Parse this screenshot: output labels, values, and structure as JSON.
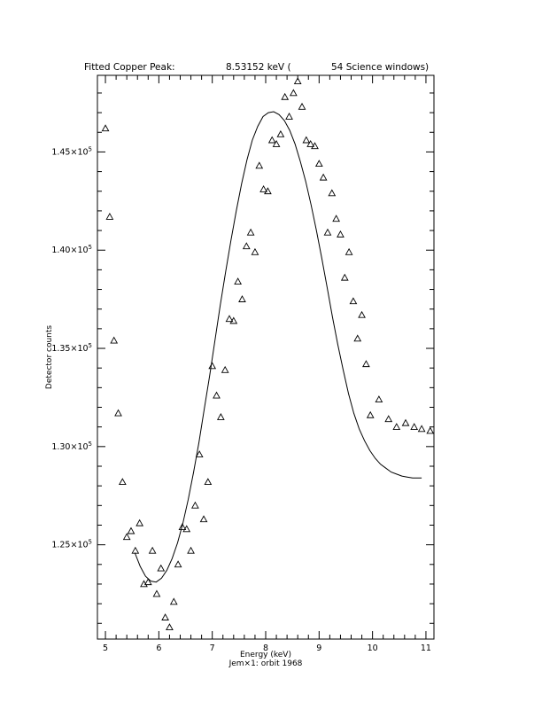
{
  "chart_data": {
    "type": "scatter",
    "title_left": "Fitted Copper Peak:",
    "title_value": "8.53152 keV (",
    "title_right": "54 Science windows)",
    "xlabel": "Energy (keV)",
    "ylabel": "Detector counts",
    "subtitle": "Jem×1: orbit 1968",
    "xlim": [
      4.85,
      11.15
    ],
    "ylim": [
      120200,
      148900
    ],
    "x_ticks": [
      5,
      6,
      7,
      8,
      9,
      10,
      11
    ],
    "y_ticks": [
      {
        "value": 125000,
        "mantissa": "1.25×10",
        "exp": "5"
      },
      {
        "value": 130000,
        "mantissa": "1.30×10",
        "exp": "5"
      },
      {
        "value": 135000,
        "mantissa": "1.35×10",
        "exp": "5"
      },
      {
        "value": 140000,
        "mantissa": "1.40×10",
        "exp": "5"
      },
      {
        "value": 145000,
        "mantissa": "1.45×10",
        "exp": "5"
      }
    ],
    "grid": false,
    "series": [
      {
        "style": "triangle-markers",
        "x": [
          5.0,
          5.08,
          5.16,
          5.24,
          5.32,
          5.4,
          5.48,
          5.56,
          5.64,
          5.72,
          5.8,
          5.88,
          5.96,
          6.04,
          6.12,
          6.2,
          6.28,
          6.36,
          6.44,
          6.52,
          6.6,
          6.68,
          6.76,
          6.84,
          6.92,
          7.0,
          7.08,
          7.16,
          7.24,
          7.32,
          7.4,
          7.48,
          7.56,
          7.64,
          7.72,
          7.8,
          7.88,
          7.96,
          8.04,
          8.12,
          8.2,
          8.28,
          8.36,
          8.44,
          8.52,
          8.6,
          8.68,
          8.76,
          8.84,
          8.92,
          9.0,
          9.08,
          9.16,
          9.24,
          9.32,
          9.4,
          9.48,
          9.56,
          9.64,
          9.72,
          9.8,
          9.88,
          9.96,
          10.12,
          10.3,
          10.45,
          10.62,
          10.78,
          10.92,
          11.08
        ],
        "y": [
          146200,
          141700,
          135400,
          131700,
          128200,
          125400,
          125700,
          124700,
          126100,
          123000,
          123100,
          124700,
          122500,
          123800,
          121300,
          120800,
          122100,
          124000,
          125900,
          125800,
          124700,
          127000,
          129600,
          126300,
          128200,
          134100,
          132600,
          131500,
          133900,
          136500,
          136400,
          138400,
          137500,
          140200,
          140900,
          139900,
          144300,
          143100,
          143000,
          145600,
          145400,
          145900,
          147800,
          146800,
          148000,
          148600,
          147300,
          145600,
          145400,
          145300,
          144400,
          143700,
          140900,
          142900,
          141600,
          140800,
          138600,
          139900,
          137400,
          135500,
          136700,
          134200,
          131600,
          132400,
          131400,
          131000,
          131200,
          131000,
          130900,
          130800
        ],
        "y_corrected": true
      },
      {
        "style": "fit-line",
        "x": [
          5.55,
          5.65,
          5.75,
          5.85,
          5.95,
          6.05,
          6.15,
          6.25,
          6.35,
          6.45,
          6.55,
          6.65,
          6.75,
          6.85,
          6.95,
          7.05,
          7.15,
          7.25,
          7.35,
          7.45,
          7.55,
          7.65,
          7.75,
          7.85,
          7.95,
          8.05,
          8.15,
          8.25,
          8.35,
          8.45,
          8.55,
          8.65,
          8.75,
          8.85,
          8.95,
          9.05,
          9.15,
          9.25,
          9.35,
          9.45,
          9.55,
          9.65,
          9.75,
          9.85,
          9.95,
          10.05,
          10.15,
          10.25,
          10.35,
          10.45,
          10.55,
          10.65,
          10.75,
          10.85,
          10.92
        ],
        "y": [
          124600,
          123900,
          123400,
          123150,
          123100,
          123300,
          123700,
          124300,
          125100,
          126100,
          127300,
          128700,
          130200,
          131900,
          133600,
          135400,
          137200,
          138900,
          140500,
          142000,
          143400,
          144600,
          145600,
          146300,
          146800,
          147000,
          147050,
          146900,
          146600,
          146100,
          145400,
          144500,
          143500,
          142300,
          141000,
          139600,
          138100,
          136600,
          135200,
          133900,
          132700,
          131700,
          130900,
          130300,
          129800,
          129400,
          129100,
          128900,
          128700,
          128600,
          128500,
          128450,
          128400,
          128400,
          128400
        ]
      }
    ]
  }
}
